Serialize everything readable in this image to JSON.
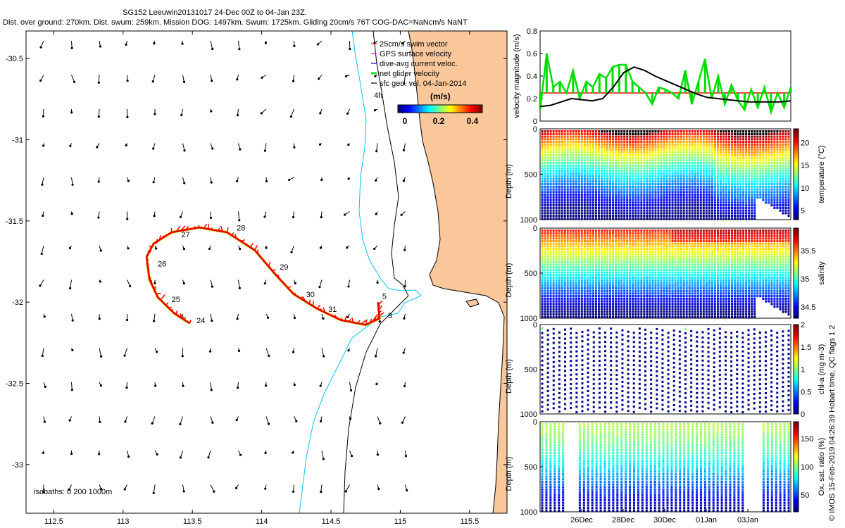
{
  "header": {
    "title1": "SG152 Leeuwin20131017 24-Dec 00Z to 04-Jan 23Z.",
    "title2": "Dist. over ground: 270km. Dist. swum: 259km. Mission DOG: 1497km. Swum: 1725km. Gliding 20cm/s 76T COG-DAC=NaNcm/s NaNT"
  },
  "copyright": "© IMOS 15-Feb-2019 04:26:39 Hobart time. QC flags 1  2",
  "colors": {
    "land": "#f9c79a",
    "coast": "#000000",
    "isobath_200": "#00c8f0",
    "track": "#e00000",
    "glider_vel": "#00e000",
    "legend_red": "#ff0000",
    "legend_magenta": "#ff00ff",
    "legend_blue": "#0000ff"
  },
  "chart_data": [
    {
      "type": "scatter",
      "name": "map",
      "xlim": [
        112.3,
        115.77
      ],
      "ylim": [
        -33.3,
        -30.33
      ],
      "xticks": [
        "112.5",
        "113",
        "113.5",
        "114",
        "114.5",
        "115",
        "115.5"
      ],
      "xtick_values": [
        112.5,
        113,
        113.5,
        114,
        114.5,
        115,
        115.5
      ],
      "yticks": [
        "-30.5",
        "-31",
        "-31.5",
        "-32",
        "-32.5",
        "-33"
      ],
      "ytick_values": [
        -30.5,
        -31,
        -31.5,
        -32,
        -32.5,
        -33
      ],
      "legend": {
        "position": "top-right",
        "entries": [
          {
            "label": "25cm/s swim vector",
            "color": "#ff0000"
          },
          {
            "label": "GPS surface velocity",
            "color": "#ff00ff"
          },
          {
            "label": "dive-avg current veloc.",
            "color": "#0000ff"
          },
          {
            "label": "net glider velocity",
            "color": "#00e000"
          },
          {
            "label": "sfc geo. vel. 04-Jan-2014",
            "color": "#000000"
          }
        ]
      },
      "colorbar": {
        "title": "(m/s)",
        "ticks": [
          "0",
          "0.2",
          "0.4"
        ],
        "tick_values": [
          0,
          0.2,
          0.4
        ],
        "range": [
          0,
          0.5
        ]
      },
      "isobaths_label": "isobaths: 0   200  1000m",
      "map_label": "4h",
      "track": [
        [
          113.48,
          -32.13
        ],
        [
          113.37,
          -32.07
        ],
        [
          113.25,
          -31.97
        ],
        [
          113.19,
          -31.86
        ],
        [
          113.17,
          -31.72
        ],
        [
          113.22,
          -31.64
        ],
        [
          113.35,
          -31.57
        ],
        [
          113.55,
          -31.54
        ],
        [
          113.75,
          -31.57
        ],
        [
          113.95,
          -31.68
        ],
        [
          114.1,
          -31.83
        ],
        [
          114.23,
          -31.95
        ],
        [
          114.4,
          -32.04
        ],
        [
          114.57,
          -32.11
        ],
        [
          114.75,
          -32.14
        ],
        [
          114.85,
          -32.1
        ],
        [
          114.84,
          -32.0
        ]
      ],
      "day_labels": [
        {
          "label": "24",
          "lon": 113.53,
          "lat": -32.13
        },
        {
          "label": "25",
          "lon": 113.35,
          "lat": -32.0
        },
        {
          "label": "26",
          "lon": 113.25,
          "lat": -31.78
        },
        {
          "label": "27",
          "lon": 113.42,
          "lat": -31.6
        },
        {
          "label": "28",
          "lon": 113.82,
          "lat": -31.56
        },
        {
          "label": "29",
          "lon": 114.13,
          "lat": -31.8
        },
        {
          "label": "30",
          "lon": 114.32,
          "lat": -31.97
        },
        {
          "label": "31",
          "lon": 114.48,
          "lat": -32.06
        },
        {
          "label": "5",
          "lon": 114.87,
          "lat": -31.98
        },
        {
          "label": "3",
          "lon": 114.91,
          "lat": -32.1
        }
      ]
    },
    {
      "type": "line",
      "name": "velocity",
      "ylabel": "velocity magnitude (m/s)",
      "ylim": [
        0,
        0.8
      ],
      "yticks": [
        "0",
        "0.2",
        "0.4",
        "0.6",
        "0.8"
      ],
      "reference_line": 0.25,
      "series": [
        {
          "color": "#000000",
          "values": [
            0.13,
            0.14,
            0.17,
            0.2,
            0.19,
            0.18,
            0.2,
            0.3,
            0.43,
            0.48,
            0.45,
            0.4,
            0.36,
            0.32,
            0.28,
            0.24,
            0.21,
            0.2,
            0.19,
            0.18,
            0.17,
            0.17,
            0.17,
            0.17,
            0.18
          ]
        },
        {
          "color": "#00e000",
          "values": [
            0.1,
            0.6,
            0.3,
            0.35,
            0.25,
            0.45,
            0.2,
            0.35,
            0.3,
            0.42,
            0.38,
            0.48,
            0.5,
            0.5,
            0.35,
            0.3,
            0.25,
            0.15,
            0.3,
            0.28,
            0.25,
            0.2,
            0.45,
            0.15,
            0.35,
            0.55,
            0.2,
            0.4,
            0.15,
            0.32,
            0.18,
            0.1,
            0.28,
            0.12,
            0.3,
            0.08,
            0.25,
            0.12,
            0.3
          ]
        }
      ]
    },
    {
      "type": "heatmap",
      "name": "temperature",
      "ylabel": "Depth (m)",
      "colorbar_label": "temperature (°C)",
      "ylim": [
        1000,
        0
      ],
      "yticks": [
        "0",
        "500",
        "1000"
      ],
      "colorbar_ticks": [
        "5",
        "10",
        "15",
        "20"
      ],
      "colorbar_range": [
        3,
        23
      ]
    },
    {
      "type": "heatmap",
      "name": "salinity",
      "ylabel": "Depth (m)",
      "colorbar_label": "salinity",
      "ylim": [
        1000,
        0
      ],
      "yticks": [
        "0",
        "500",
        "1000"
      ],
      "colorbar_ticks": [
        "34.5",
        "35",
        "35.5"
      ],
      "colorbar_range": [
        34.3,
        35.9
      ]
    },
    {
      "type": "heatmap",
      "name": "chlorophyll",
      "ylabel": "Depth (m)",
      "colorbar_label": "chl-a (mg m-3)",
      "ylim": [
        1000,
        0
      ],
      "yticks": [
        "0",
        "500",
        "1000"
      ],
      "colorbar_ticks": [
        "0",
        "0.5",
        "1",
        "1.5",
        "2"
      ],
      "colorbar_range": [
        0,
        2
      ]
    },
    {
      "type": "heatmap",
      "name": "oxygen",
      "ylabel": "Depth (m)",
      "colorbar_label": "Ox. sat. ratio (%)",
      "ylim": [
        1000,
        0
      ],
      "yticks": [
        "0",
        "500",
        "1000"
      ],
      "colorbar_ticks": [
        "50",
        "100",
        "150"
      ],
      "colorbar_range": [
        20,
        180
      ],
      "xticks": [
        "26Dec",
        "28Dec",
        "30Dec",
        "01Jan",
        "03Jan"
      ]
    }
  ]
}
